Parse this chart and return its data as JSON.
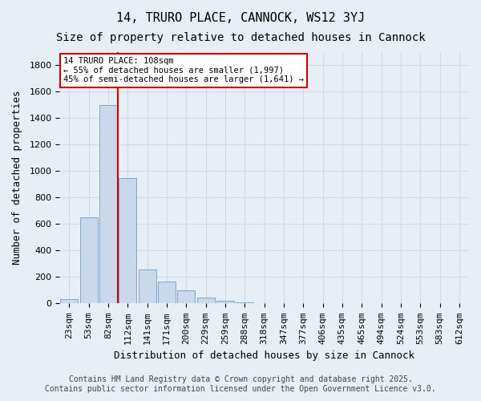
{
  "title_line1": "14, TRURO PLACE, CANNOCK, WS12 3YJ",
  "title_line2": "Size of property relative to detached houses in Cannock",
  "xlabel": "Distribution of detached houses by size in Cannock",
  "ylabel": "Number of detached properties",
  "categories": [
    "23sqm",
    "53sqm",
    "82sqm",
    "112sqm",
    "141sqm",
    "171sqm",
    "200sqm",
    "229sqm",
    "259sqm",
    "288sqm",
    "318sqm",
    "347sqm",
    "377sqm",
    "406sqm",
    "435sqm",
    "465sqm",
    "494sqm",
    "524sqm",
    "553sqm",
    "583sqm",
    "612sqm"
  ],
  "values": [
    30,
    650,
    1500,
    950,
    260,
    165,
    100,
    45,
    20,
    8,
    3,
    2,
    2,
    1,
    1,
    1,
    0,
    0,
    0,
    0,
    0
  ],
  "bar_color": "#c9d9eb",
  "bar_edge_color": "#7ea8c9",
  "grid_color": "#d0d8e4",
  "background_color": "#e8eef5",
  "annotation_box_color": "#ffffff",
  "annotation_border_color": "#cc0000",
  "vline_color": "#cc0000",
  "vline_x": 2.5,
  "annotation_text_line1": "14 TRURO PLACE: 108sqm",
  "annotation_text_line2": "← 55% of detached houses are smaller (1,997)",
  "annotation_text_line3": "45% of semi-detached houses are larger (1,641) →",
  "footer_line1": "Contains HM Land Registry data © Crown copyright and database right 2025.",
  "footer_line2": "Contains public sector information licensed under the Open Government Licence v3.0.",
  "ylim": [
    0,
    1900
  ],
  "yticks": [
    0,
    200,
    400,
    600,
    800,
    1000,
    1200,
    1400,
    1600,
    1800
  ],
  "title_fontsize": 11,
  "subtitle_fontsize": 10,
  "axis_label_fontsize": 9,
  "tick_fontsize": 8,
  "footer_fontsize": 7
}
